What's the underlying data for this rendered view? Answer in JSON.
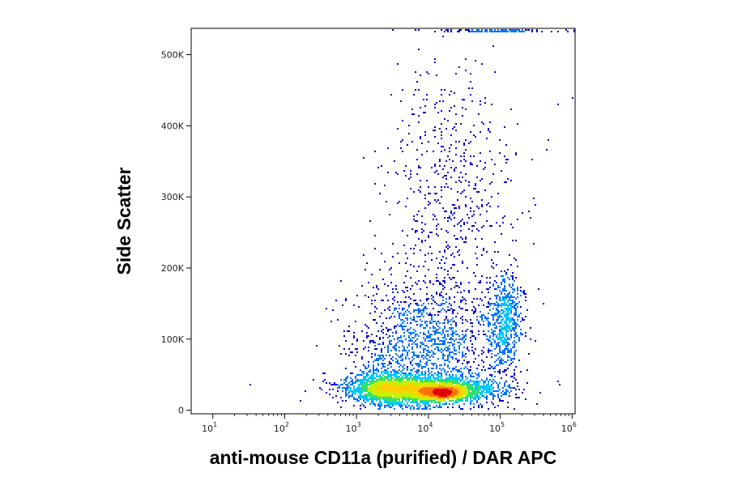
{
  "chart_data": {
    "type": "scatter",
    "subtype": "flow-cytometry-density-dot-plot",
    "title": "",
    "xlabel": "anti-mouse CD11a (purified) / DAR APC",
    "ylabel": "Side Scatter",
    "x_scale": "log",
    "x_range": [
      5,
      1100000
    ],
    "y_range": [
      -5000,
      537000
    ],
    "x_ticks": [
      {
        "value": 10,
        "base": "10",
        "exp": "1"
      },
      {
        "value": 100,
        "base": "10",
        "exp": "2"
      },
      {
        "value": 1000,
        "base": "10",
        "exp": "3"
      },
      {
        "value": 10000,
        "base": "10",
        "exp": "4"
      },
      {
        "value": 100000,
        "base": "10",
        "exp": "5"
      },
      {
        "value": 1000000,
        "base": "10",
        "exp": "6"
      }
    ],
    "y_ticks": [
      {
        "value": 0,
        "label": "0"
      },
      {
        "value": 100000,
        "label": "100K"
      },
      {
        "value": 200000,
        "label": "200K"
      },
      {
        "value": 300000,
        "label": "300K"
      },
      {
        "value": 400000,
        "label": "400K"
      },
      {
        "value": 500000,
        "label": "500K"
      }
    ],
    "grid": false,
    "legend": "none",
    "density_colors": [
      "#0000cc",
      "#0070ff",
      "#00c8ff",
      "#30e070",
      "#c8f000",
      "#ffd000",
      "#ff7000",
      "#e00000"
    ],
    "populations": [
      {
        "label": "main low-SSC band",
        "x_log_center": 3.9,
        "x_log_spread": 0.5,
        "y_center": 30000,
        "y_spread": 9000,
        "count": 3400
      },
      {
        "label": "dense core",
        "x_log_center": 4.2,
        "x_log_spread": 0.18,
        "y_center": 25000,
        "y_spread": 4000,
        "count": 900
      },
      {
        "label": "dim shoulder",
        "x_log_center": 3.35,
        "x_log_spread": 0.18,
        "y_center": 35000,
        "y_spread": 12000,
        "count": 600
      },
      {
        "label": "mid-SSC spread",
        "x_log_center": 3.9,
        "x_log_spread": 0.5,
        "y_center": 95000,
        "y_spread": 45000,
        "count": 1300
      },
      {
        "label": "high-CD11a high-SSC cluster",
        "x_log_center": 5.05,
        "x_log_spread": 0.12,
        "y_center": 125000,
        "y_spread": 35000,
        "count": 650
      },
      {
        "label": "sparse high-SSC cells",
        "x_log_center": 4.3,
        "x_log_spread": 0.45,
        "y_center": 300000,
        "y_spread": 110000,
        "count": 650
      },
      {
        "label": "saturated top edge",
        "x_log_center": 4.9,
        "x_log_spread": 0.4,
        "y_center": 535000,
        "y_spread": 600,
        "count": 140
      }
    ]
  }
}
